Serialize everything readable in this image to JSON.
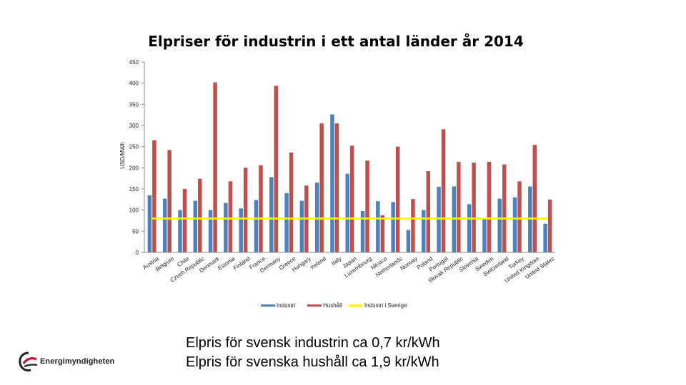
{
  "title": "Elpriser för industrin i ett antal länder år 2014",
  "caption": {
    "line1": "Elpris för svensk industrin ca 0,7 kr/kWh",
    "line2": "Elpris för svenska hushåll ca 1,9 kr/kWh"
  },
  "logo": {
    "text": "Energimyndigheten"
  },
  "colors": {
    "industri": "#4F81BD",
    "hushall": "#C0504D",
    "sverige": "#FFFF00"
  },
  "chart_data": {
    "type": "bar",
    "title": "Elpriser för industrin i ett antal länder år 2014",
    "ylabel": "USD/MWh",
    "xlabel": "",
    "ylim": [
      0,
      450
    ],
    "yticks": [
      0,
      50,
      100,
      150,
      200,
      250,
      300,
      350,
      400,
      450
    ],
    "categories": [
      "Austria",
      "Belgium",
      "Chile",
      "Czech Republic",
      "Denmark",
      "Estonia",
      "Finland",
      "France",
      "Germany",
      "Greece",
      "Hungary",
      "Ireland",
      "Italy",
      "Japan",
      "Luxembourg",
      "Mexico",
      "Netherlands",
      "Norway",
      "Poland",
      "Portugal",
      "Slovak Republic",
      "Slovenia",
      "Sweden",
      "Switzerland",
      "Turkey",
      "United Kingdom",
      "United States"
    ],
    "series": [
      {
        "name": "Industri",
        "values": [
          135,
          127,
          100,
          122,
          100,
          117,
          104,
          124,
          178,
          140,
          122,
          165,
          326,
          186,
          98,
          121,
          119,
          53,
          100,
          155,
          156,
          114,
          80,
          127,
          130,
          156,
          68
        ]
      },
      {
        "name": "Hushåll",
        "values": [
          265,
          242,
          150,
          174,
          402,
          168,
          200,
          206,
          394,
          236,
          158,
          305,
          305,
          252,
          217,
          88,
          250,
          126,
          192,
          291,
          214,
          212,
          214,
          208,
          168,
          254,
          125
        ]
      },
      {
        "name": "Industri i Sverige",
        "type": "line",
        "value": 80
      }
    ],
    "legend": [
      "Industri",
      "Hushåll",
      "Industri i Sverige"
    ],
    "legend_position": "bottom"
  }
}
